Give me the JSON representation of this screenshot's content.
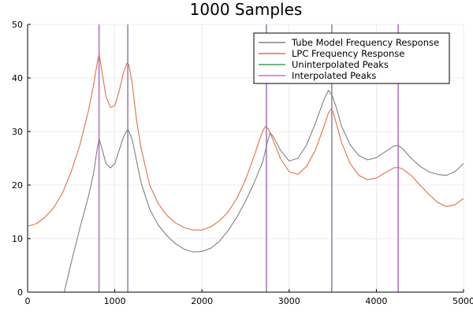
{
  "chart_data": {
    "type": "line",
    "title": "1000 Samples",
    "xlabel": "",
    "ylabel": "",
    "xlim": [
      0,
      5000
    ],
    "ylim": [
      0,
      50
    ],
    "xticks": [
      0,
      1000,
      2000,
      3000,
      4000,
      5000
    ],
    "yticks": [
      0,
      10,
      20,
      30,
      40,
      50
    ],
    "xtick_labels": [
      "0",
      "1000",
      "2000",
      "3000",
      "4000",
      "5000"
    ],
    "ytick_labels": [
      "0",
      "10",
      "20",
      "30",
      "40",
      "50"
    ],
    "grid": true,
    "legend_position": "top-right",
    "series": [
      {
        "name": "Tube Model Frequency Response",
        "color": "#808080",
        "style": "line",
        "x": [
          420,
          500,
          600,
          700,
          760,
          800,
          820,
          850,
          900,
          950,
          1000,
          1050,
          1100,
          1150,
          1200,
          1250,
          1300,
          1400,
          1500,
          1600,
          1700,
          1800,
          1900,
          2000,
          2100,
          2200,
          2300,
          2400,
          2500,
          2600,
          2700,
          2750,
          2780,
          2820,
          2900,
          3000,
          3100,
          3200,
          3300,
          3400,
          3450,
          3500,
          3550,
          3600,
          3700,
          3800,
          3900,
          4000,
          4100,
          4200,
          4250,
          4300,
          4400,
          4500,
          4600,
          4700,
          4800,
          4900,
          5000
        ],
        "y": [
          0,
          5.5,
          12,
          18,
          22.5,
          27,
          28.7,
          27,
          24,
          23.2,
          24,
          26.5,
          29,
          30.5,
          28.5,
          24.5,
          20.5,
          15.5,
          12.5,
          10.5,
          9,
          8,
          7.5,
          7.6,
          8.2,
          9.5,
          11.5,
          14,
          17,
          20.5,
          24.5,
          28,
          29.8,
          29,
          26.5,
          24.5,
          25,
          27.5,
          31.5,
          36,
          37.7,
          36.5,
          34,
          31,
          27.5,
          25.5,
          24.7,
          25.1,
          26.2,
          27.3,
          27.4,
          26.8,
          25,
          23.5,
          22.5,
          22,
          21.8,
          22.5,
          24
        ]
      },
      {
        "name": "LPC Frequency Response",
        "color": "#e26f46",
        "style": "line",
        "x": [
          0,
          100,
          200,
          300,
          400,
          500,
          600,
          700,
          760,
          800,
          820,
          850,
          900,
          950,
          1000,
          1050,
          1100,
          1140,
          1160,
          1200,
          1250,
          1300,
          1400,
          1500,
          1600,
          1700,
          1800,
          1900,
          2000,
          2100,
          2200,
          2300,
          2400,
          2500,
          2600,
          2650,
          2700,
          2730,
          2760,
          2800,
          2900,
          3000,
          3100,
          3200,
          3300,
          3400,
          3450,
          3480,
          3500,
          3550,
          3600,
          3700,
          3800,
          3900,
          4000,
          4100,
          4200,
          4250,
          4300,
          4400,
          4500,
          4600,
          4700,
          4800,
          4900,
          5000
        ],
        "y": [
          12.3,
          12.8,
          14,
          15.8,
          18.5,
          22.5,
          27.5,
          34,
          39,
          43,
          44.5,
          41.5,
          36.5,
          34.5,
          34.8,
          37.5,
          41,
          42.8,
          42.5,
          39,
          32,
          27,
          20,
          16.5,
          14.3,
          12.9,
          12,
          11.6,
          11.6,
          12.2,
          13.3,
          15,
          17.5,
          21,
          25.5,
          28,
          30.2,
          31,
          30.5,
          29,
          25,
          22.5,
          22,
          23.5,
          26.5,
          31,
          33.5,
          34.2,
          33.8,
          31,
          28,
          24,
          21.8,
          21,
          21.3,
          22.3,
          23.2,
          23.3,
          23,
          21.8,
          20,
          18.3,
          16.8,
          16,
          16.3,
          17.5
        ]
      },
      {
        "name": "Uninterpolated Peaks",
        "color": "#3da44d",
        "style": "vline",
        "x": [
          820,
          1150,
          2740,
          3490,
          4250
        ]
      },
      {
        "name": "Interpolated Peaks",
        "color": "#c271d2",
        "style": "vline",
        "x": [
          818,
          1148,
          2738,
          3488,
          4252
        ]
      }
    ]
  }
}
